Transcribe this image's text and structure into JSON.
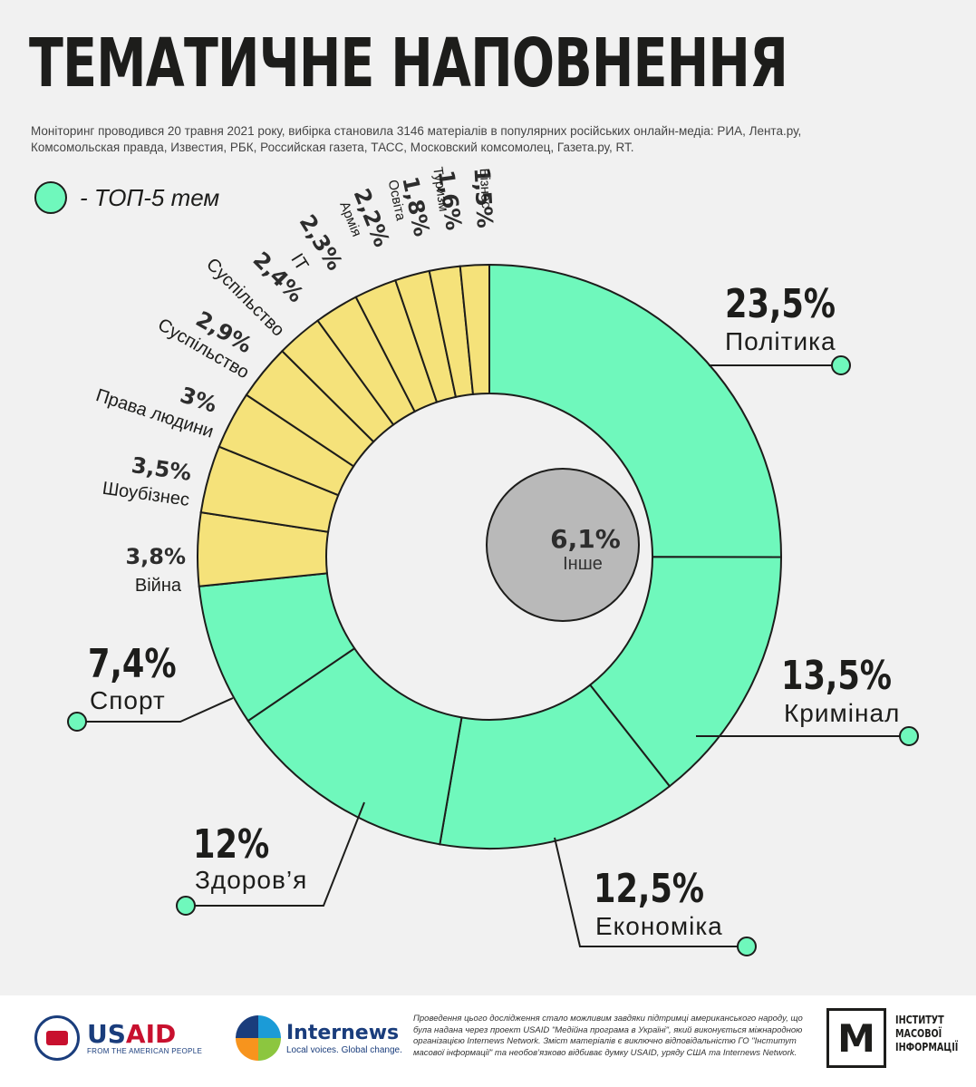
{
  "header": {
    "title": "ТЕМАТИЧНЕ НАПОВНЕННЯ",
    "subtitle": "Моніторинг проводився 20 травня 2021 року, вибірка становила  3146 матеріалів в популярних російських онлайн-медіа: РИА, Лента.ру, Комсомольская правда, Известия, РБК, Российская газета, ТАСС, Московский комсомолец, Газета.ру, RT."
  },
  "legend": {
    "label": "- ТОП-5 тем",
    "color": "#6ff8bc"
  },
  "colors": {
    "top5": "#6ff8bc",
    "other_topics": "#f5e27a",
    "center": "#b9b9b9",
    "stroke": "#1d1d1b"
  },
  "chart_data": {
    "type": "donut",
    "unit": "%",
    "center": {
      "value": 6.1,
      "value_label": "6,1%",
      "label": "Інше"
    },
    "slices": [
      {
        "name": "Політика",
        "value": 23.5,
        "value_label": "23,5%",
        "top5": true
      },
      {
        "name": "Кримінал",
        "value": 13.5,
        "value_label": "13,5%",
        "top5": true
      },
      {
        "name": "Економіка",
        "value": 12.5,
        "value_label": "12,5%",
        "top5": true
      },
      {
        "name": "Здоров’я",
        "value": 12,
        "value_label": "12%",
        "top5": true
      },
      {
        "name": "Спорт",
        "value": 7.4,
        "value_label": "7,4%",
        "top5": true
      },
      {
        "name": "Війна",
        "value": 3.8,
        "value_label": "3,8%",
        "top5": false
      },
      {
        "name": "Шоубізнес",
        "value": 3.5,
        "value_label": "3,5%",
        "top5": false
      },
      {
        "name": "Права людини",
        "value": 3,
        "value_label": "3%",
        "top5": false
      },
      {
        "name": "Суспільство",
        "value": 2.9,
        "value_label": "2,9%",
        "top5": false
      },
      {
        "name": "Суспільство",
        "value": 2.4,
        "value_label": "2,4%",
        "top5": false
      },
      {
        "name": "IT",
        "value": 2.3,
        "value_label": "2,3%",
        "top5": false
      },
      {
        "name": "Армія",
        "value": 2.2,
        "value_label": "2,2%",
        "top5": false
      },
      {
        "name": "Освіта",
        "value": 1.8,
        "value_label": "1,8%",
        "top5": false
      },
      {
        "name": "Туризм",
        "value": 1.6,
        "value_label": "1,6%",
        "top5": false
      },
      {
        "name": "Бізнес",
        "value": 1.5,
        "value_label": "1,5%",
        "top5": false
      }
    ]
  },
  "footer": {
    "usaid_name_a": "US",
    "usaid_name_b": "AID",
    "usaid_tagline": "FROM THE AMERICAN PEOPLE",
    "internews_name": "Internews",
    "internews_tagline": "Local voices. Global change.",
    "disclaimer": "Проведення цього дослідження стало можливим завдяки підтримці американського народу, що була надана через проект USAID \"Медійна програма в Україні\", який виконується міжнародною організацією Internews Network. Зміст матеріалів є виключно відповідальністю ГО \"Інститут масової інформації\" та необов’язково відбиває думку USAID, уряду США та Internews Network.",
    "imi_mark": "М",
    "imi_text_1": "ІНСТИТУТ",
    "imi_text_2": "МАСОВОЇ",
    "imi_text_3": "ІНФОРМАЦІЇ"
  }
}
